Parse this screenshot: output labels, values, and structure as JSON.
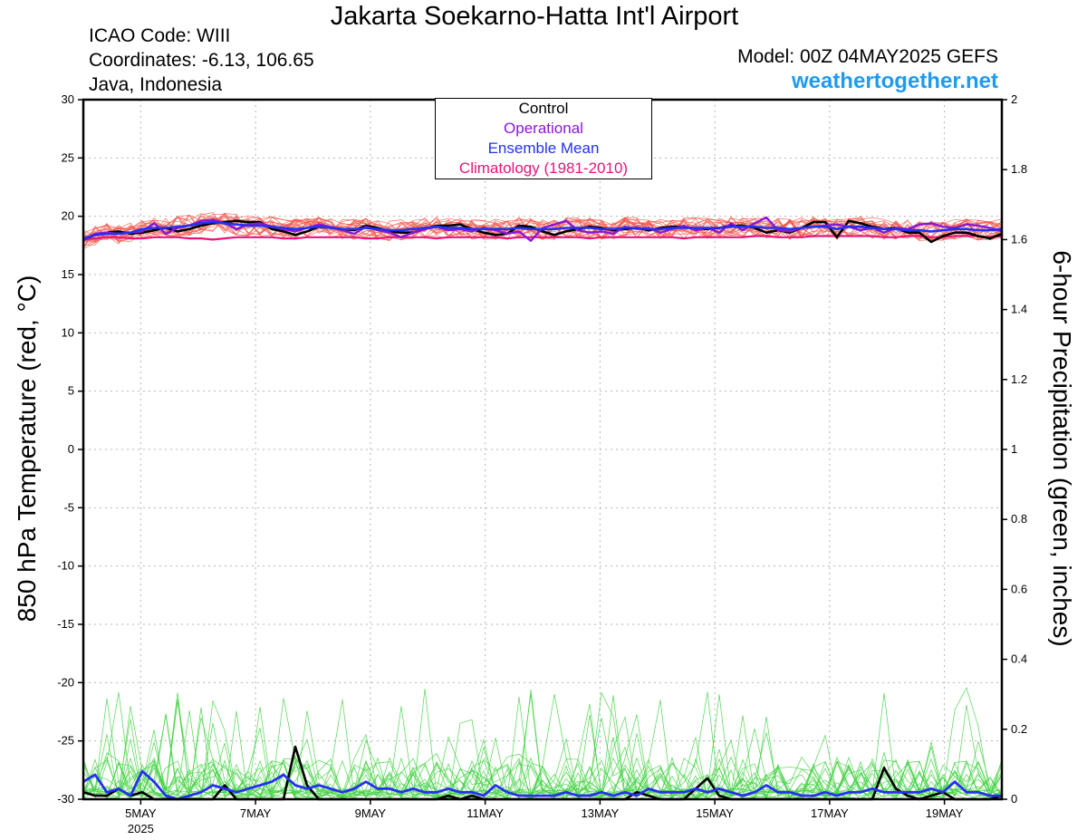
{
  "header": {
    "title": "Jakarta Soekarno-Hatta Int'l Airport",
    "icao": "ICAO Code: WIII",
    "coordinates": "Coordinates: -6.13, 106.65",
    "region": "Java, Indonesia",
    "model": "Model: 00Z 04MAY2025 GEFS",
    "site": "weathertogether.net"
  },
  "legend": {
    "control": "Control",
    "operational": "Operational",
    "ensemble_mean": "Ensemble Mean",
    "climatology": "Climatology (1981-2010)"
  },
  "colors": {
    "control": "#000000",
    "operational": "#8a17d6",
    "ensemble_mean": "#2530f0",
    "climatology": "#e8147a",
    "temp_members": "#f05545",
    "precip_members": "#3fd23f"
  },
  "chart_data": {
    "type": "line",
    "ylabel_left": "850 hPa Temperature (red, °C)",
    "ylabel_right": "6-hour Precipitation (green, inches)",
    "y_left_range": [
      -30,
      30
    ],
    "y_left_ticks": [
      "-30",
      "-25",
      "-20",
      "-15",
      "-10",
      "-5",
      "0",
      "5",
      "10",
      "15",
      "20",
      "25",
      "30"
    ],
    "y_right_range": [
      0,
      2
    ],
    "y_right_ticks": [
      "0",
      "0.2",
      "0.4",
      "0.6",
      "0.8",
      "1",
      "1.2",
      "1.4",
      "1.6",
      "1.8",
      "2"
    ],
    "x_range_days": [
      "04MAY2025 00Z",
      "20MAY2025 00Z"
    ],
    "x_ticks": [
      {
        "label": "5MAY",
        "sub": "2025",
        "day": 5
      },
      {
        "label": "7MAY",
        "day": 7
      },
      {
        "label": "9MAY",
        "day": 9
      },
      {
        "label": "11MAY",
        "day": 11
      },
      {
        "label": "13MAY",
        "day": 13
      },
      {
        "label": "15MAY",
        "day": 15
      },
      {
        "label": "17MAY",
        "day": 17
      },
      {
        "label": "19MAY",
        "day": 19
      }
    ],
    "grid": true,
    "time_step_hours": 6,
    "series": [
      {
        "key": "control",
        "name": "Control",
        "axis": "left",
        "values": [
          18.0,
          18.4,
          18.6,
          18.7,
          18.5,
          18.6,
          18.8,
          19.0,
          18.7,
          18.9,
          19.2,
          19.4,
          19.5,
          19.6,
          19.5,
          19.5,
          18.9,
          18.7,
          18.4,
          18.7,
          19.1,
          19.0,
          18.9,
          18.8,
          19.2,
          19.0,
          18.7,
          18.6,
          18.6,
          18.9,
          19.2,
          19.2,
          19.3,
          18.9,
          18.6,
          18.4,
          18.5,
          19.2,
          19.1,
          18.7,
          18.4,
          18.7,
          18.9,
          19.1,
          19.0,
          18.8,
          18.9,
          19.0,
          18.8,
          19.0,
          19.1,
          19.1,
          18.9,
          18.9,
          19.0,
          19.2,
          19.2,
          19.0,
          18.6,
          18.8,
          18.6,
          19.0,
          19.5,
          19.5,
          18.2,
          19.6,
          19.4,
          19.1,
          18.9,
          19.0,
          18.6,
          18.6,
          17.8,
          18.3,
          18.6,
          18.6,
          18.3,
          18.1,
          18.5
        ]
      },
      {
        "key": "operational",
        "name": "Operational",
        "axis": "left",
        "values": [
          17.9,
          18.5,
          18.6,
          18.5,
          18.6,
          18.7,
          19.4,
          18.5,
          19.0,
          19.2,
          19.6,
          19.7,
          19.4,
          18.9,
          19.3,
          19.4,
          19.1,
          18.9,
          18.7,
          19.0,
          19.3,
          19.1,
          18.8,
          18.5,
          19.1,
          18.8,
          18.6,
          18.2,
          18.6,
          18.9,
          19.1,
          18.8,
          18.9,
          18.7,
          19.0,
          18.8,
          18.5,
          18.7,
          17.9,
          19.0,
          19.3,
          19.6,
          18.8,
          18.6,
          18.7,
          18.5,
          19.1,
          18.9,
          19.0,
          18.6,
          18.9,
          19.2,
          18.8,
          19.0,
          18.6,
          19.4,
          18.8,
          19.4,
          19.9,
          18.8,
          18.7,
          19.0,
          19.1,
          19.2,
          19.3,
          19.1,
          18.8,
          19.0,
          18.6,
          19.0,
          18.9,
          19.3,
          19.4,
          19.1,
          19.0,
          19.3,
          19.2,
          19.0,
          18.7
        ]
      },
      {
        "key": "ensemble_mean",
        "name": "Ensemble Mean",
        "axis": "left",
        "values": [
          18.1,
          18.4,
          18.5,
          18.5,
          18.6,
          18.9,
          19.0,
          19.0,
          19.1,
          19.2,
          19.4,
          19.5,
          19.4,
          19.3,
          19.2,
          19.2,
          19.1,
          19.0,
          18.9,
          19.0,
          19.1,
          19.0,
          18.9,
          18.9,
          19.0,
          18.9,
          18.8,
          18.8,
          18.9,
          19.0,
          19.1,
          19.0,
          19.0,
          18.9,
          18.9,
          18.9,
          18.9,
          19.0,
          18.9,
          18.9,
          18.9,
          19.0,
          19.0,
          19.0,
          18.9,
          18.9,
          19.0,
          19.0,
          18.9,
          18.9,
          19.0,
          19.0,
          19.0,
          19.0,
          19.0,
          19.1,
          19.1,
          19.1,
          19.0,
          19.0,
          18.9,
          19.0,
          19.1,
          19.1,
          18.9,
          19.1,
          19.1,
          19.0,
          18.9,
          18.9,
          18.8,
          18.8,
          18.7,
          18.8,
          18.9,
          18.9,
          18.8,
          18.8,
          18.9
        ]
      },
      {
        "key": "climatology",
        "name": "Climatology (1981-2010)",
        "axis": "left",
        "values": [
          18.0,
          18.1,
          18.2,
          18.2,
          18.1,
          18.1,
          18.2,
          18.2,
          18.2,
          18.1,
          18.1,
          18.0,
          18.1,
          18.2,
          18.2,
          18.2,
          18.2,
          18.1,
          18.1,
          18.2,
          18.2,
          18.2,
          18.2,
          18.2,
          18.1,
          18.1,
          18.2,
          18.2,
          18.2,
          18.2,
          18.1,
          18.2,
          18.2,
          18.2,
          18.2,
          18.2,
          18.1,
          18.2,
          18.2,
          18.2,
          18.2,
          18.2,
          18.2,
          18.1,
          18.2,
          18.2,
          18.2,
          18.2,
          18.2,
          18.2,
          18.2,
          18.1,
          18.2,
          18.2,
          18.2,
          18.2,
          18.2,
          18.3,
          18.3,
          18.2,
          18.2,
          18.2,
          18.3,
          18.3,
          18.3,
          18.3,
          18.3,
          18.3,
          18.2,
          18.2,
          18.3,
          18.3,
          18.2,
          18.2,
          18.3,
          18.3,
          18.3,
          18.2,
          18.3
        ]
      },
      {
        "key": "control_precip",
        "name": "Control",
        "axis": "right",
        "values": [
          0.02,
          0.01,
          0.01,
          0.03,
          0.01,
          0.02,
          0.0,
          0.0,
          0.0,
          0.0,
          0.0,
          0.0,
          0.04,
          0.0,
          0.0,
          0.0,
          0.0,
          0.0,
          0.15,
          0.04,
          0.0,
          0.0,
          0.0,
          0.0,
          0.0,
          0.0,
          0.0,
          0.0,
          0.0,
          0.0,
          0.0,
          0.01,
          0.0,
          0.01,
          0.0,
          0.0,
          0.0,
          0.0,
          0.0,
          0.0,
          0.0,
          0.0,
          0.0,
          0.0,
          0.0,
          0.0,
          0.0,
          0.02,
          0.01,
          0.0,
          0.0,
          0.0,
          0.03,
          0.06,
          0.01,
          0.0,
          0.0,
          0.0,
          0.0,
          0.0,
          0.0,
          0.0,
          0.0,
          0.0,
          0.0,
          0.0,
          0.0,
          0.0,
          0.09,
          0.03,
          0.01,
          0.0,
          0.01,
          0.02,
          0.0,
          0.0,
          0.0,
          0.0,
          0.01
        ]
      },
      {
        "key": "ensemble_mean_precip",
        "name": "Ensemble Mean",
        "axis": "right",
        "values": [
          0.05,
          0.07,
          0.02,
          0.03,
          0.01,
          0.08,
          0.05,
          0.01,
          0.0,
          0.01,
          0.02,
          0.04,
          0.03,
          0.02,
          0.03,
          0.04,
          0.05,
          0.07,
          0.04,
          0.03,
          0.04,
          0.03,
          0.02,
          0.03,
          0.05,
          0.03,
          0.03,
          0.02,
          0.03,
          0.02,
          0.02,
          0.03,
          0.02,
          0.02,
          0.01,
          0.04,
          0.02,
          0.01,
          0.01,
          0.01,
          0.01,
          0.02,
          0.01,
          0.01,
          0.02,
          0.01,
          0.02,
          0.01,
          0.03,
          0.02,
          0.02,
          0.02,
          0.03,
          0.02,
          0.03,
          0.02,
          0.01,
          0.02,
          0.04,
          0.02,
          0.02,
          0.01,
          0.01,
          0.02,
          0.01,
          0.02,
          0.02,
          0.03,
          0.02,
          0.02,
          0.02,
          0.02,
          0.03,
          0.02,
          0.05,
          0.02,
          0.02,
          0.01,
          0.01
        ]
      }
    ]
  }
}
